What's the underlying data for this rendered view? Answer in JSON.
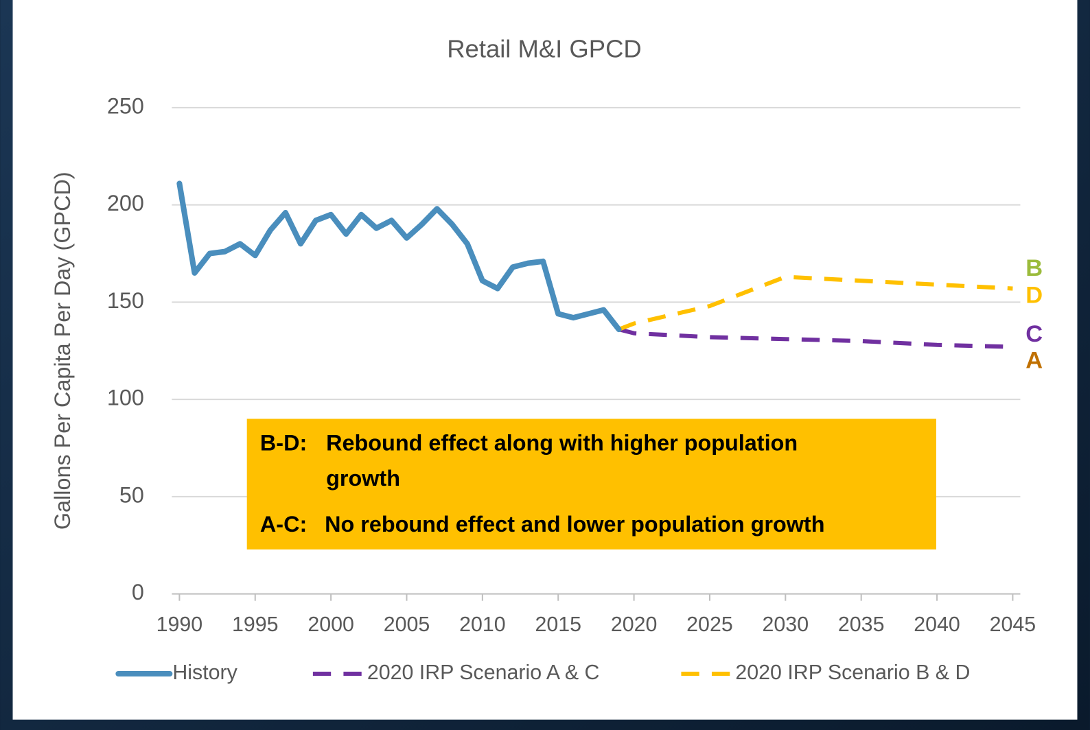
{
  "chart_data": {
    "type": "line",
    "title": "Retail M&I GPCD",
    "ylabel": "Gallons Per Capita Per Day (GPCD)",
    "xlim": [
      1989.5,
      2045.5
    ],
    "xticks": [
      1990,
      1995,
      2000,
      2005,
      2010,
      2015,
      2020,
      2025,
      2030,
      2035,
      2040,
      2045
    ],
    "ylim": [
      0,
      250
    ],
    "yticks": [
      0,
      50,
      100,
      150,
      200,
      250
    ],
    "grid": true,
    "legend": "bottom",
    "series": [
      {
        "name": "History",
        "color": "#4a8ebd",
        "dash": false,
        "x": [
          1990,
          1991,
          1992,
          1993,
          1994,
          1995,
          1996,
          1997,
          1998,
          1999,
          2000,
          2001,
          2002,
          2003,
          2004,
          2005,
          2006,
          2007,
          2008,
          2009,
          2010,
          2011,
          2012,
          2013,
          2014,
          2015,
          2016,
          2017,
          2018,
          2019
        ],
        "values": [
          211,
          165,
          175,
          176,
          180,
          174,
          187,
          196,
          180,
          192,
          195,
          185,
          195,
          188,
          192,
          183,
          190,
          198,
          190,
          180,
          161,
          157,
          168,
          170,
          171,
          144,
          142,
          144,
          146,
          136
        ]
      },
      {
        "name": "2020 IRP Scenario A & C",
        "color": "#7030a0",
        "dash": true,
        "x": [
          2019,
          2020,
          2025,
          2030,
          2035,
          2040,
          2045
        ],
        "values": [
          136,
          134,
          132,
          131,
          130,
          128,
          127
        ]
      },
      {
        "name": "2020 IRP Scenario B & D",
        "color": "#ffc000",
        "dash": true,
        "x": [
          2019,
          2020,
          2025,
          2030,
          2035,
          2040,
          2045
        ],
        "values": [
          136,
          139,
          148,
          163,
          161,
          159,
          157
        ]
      }
    ],
    "end_labels": [
      {
        "text": "B",
        "color": "#9bbb3b"
      },
      {
        "text": "D",
        "color": "#ffc000"
      },
      {
        "text": "C",
        "color": "#7030a0"
      },
      {
        "text": "A",
        "color": "#c07000"
      }
    ],
    "annotation": {
      "color": "#ffc000",
      "lines": [
        {
          "key": "B-D:",
          "text": "Rebound effect along with higher population"
        },
        {
          "key": "",
          "text": "growth"
        },
        {
          "key": "A-C:",
          "text": "No rebound effect and lower population growth"
        }
      ]
    }
  }
}
